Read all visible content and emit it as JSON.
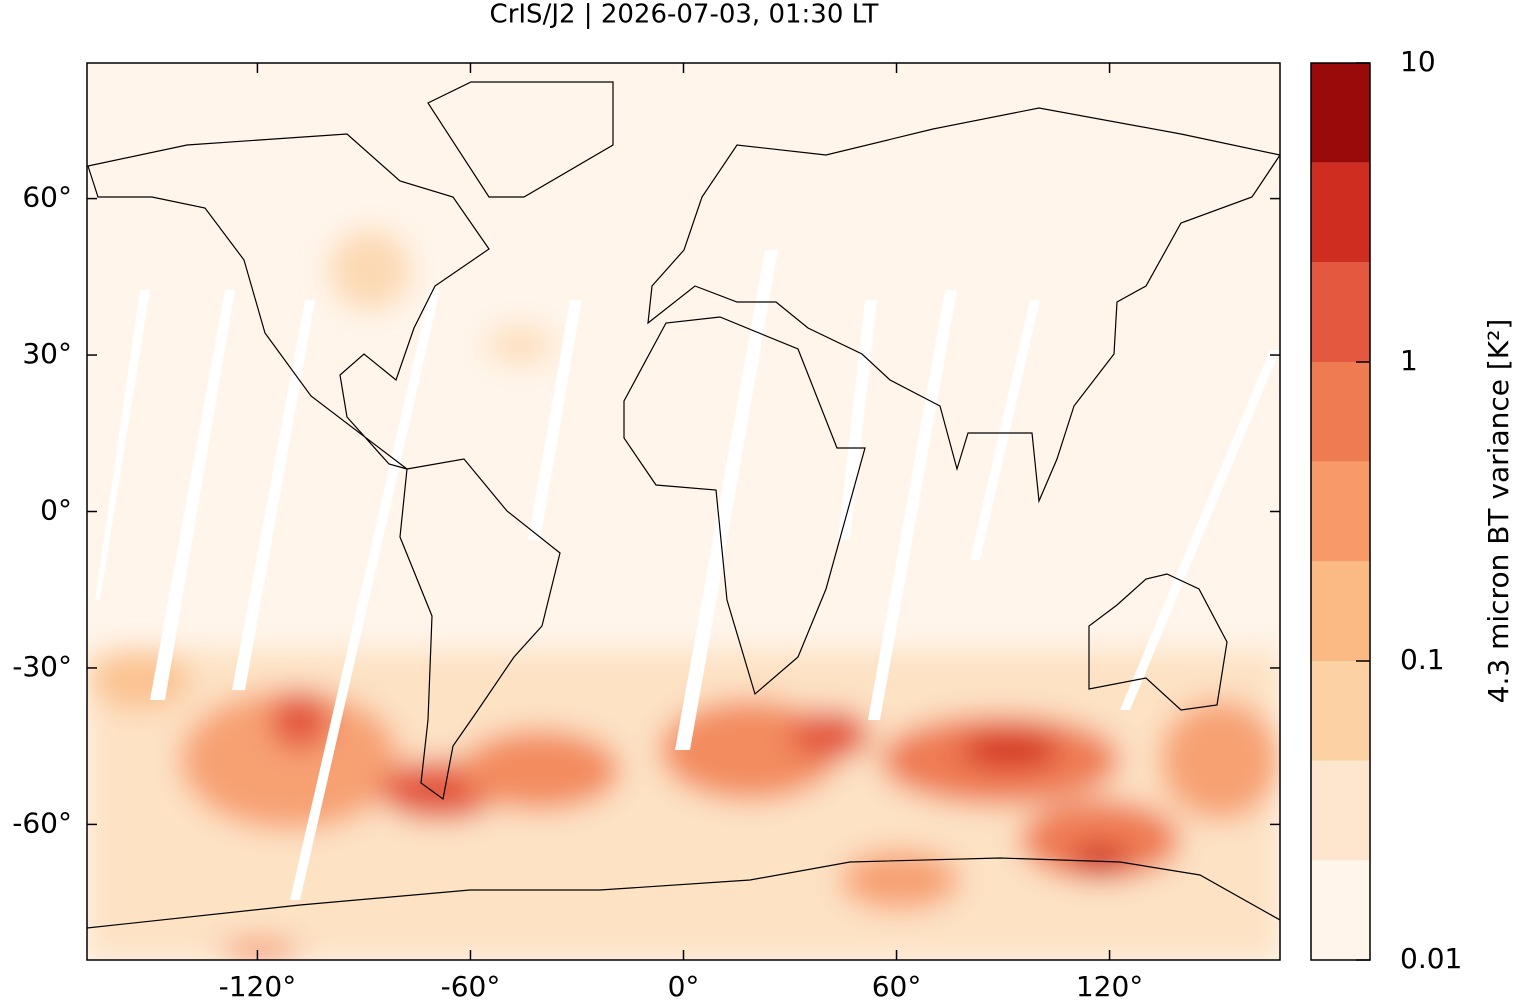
{
  "title": "CrIS/J2 | 2026-07-03, 01:30 LT",
  "map": {
    "xlim": [
      -168,
      168
    ],
    "ylim": [
      -86,
      86
    ],
    "xticks": [
      {
        "value": -120,
        "label": "-120°"
      },
      {
        "value": -60,
        "label": "-60°"
      },
      {
        "value": 0,
        "label": "0°"
      },
      {
        "value": 60,
        "label": "60°"
      },
      {
        "value": 120,
        "label": "120°"
      }
    ],
    "yticks": [
      {
        "value": -60,
        "label": "-60°"
      },
      {
        "value": -30,
        "label": "-30°"
      },
      {
        "value": 0,
        "label": "0°"
      },
      {
        "value": 30,
        "label": "30°"
      },
      {
        "value": 60,
        "label": "60°"
      }
    ]
  },
  "colorbar": {
    "label": "4.3 micron BT variance [K²]",
    "lim": [
      0.01,
      10
    ],
    "log": true,
    "ticks": [
      0.01,
      0.1,
      1,
      10
    ],
    "colors": [
      "#fff5eb",
      "#fde6cd",
      "#fcd2a4",
      "#fbb983",
      "#f79a68",
      "#ef7b52",
      "#e4583f",
      "#cf2d20",
      "#9a0a0a"
    ]
  }
}
